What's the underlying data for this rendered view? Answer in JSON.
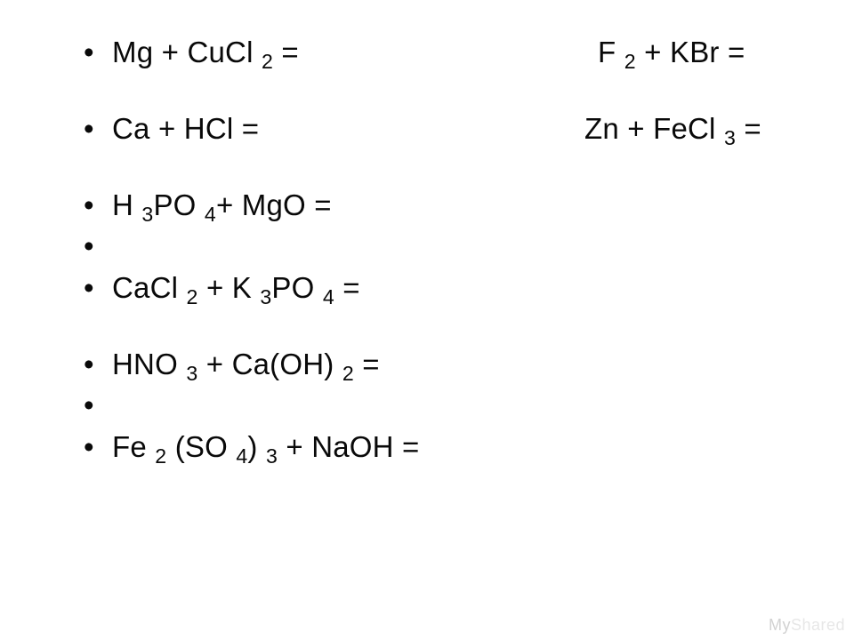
{
  "text_color": "#090909",
  "background_color": "#ffffff",
  "font_family": "Arial",
  "font_size_pt": 25,
  "lines": {
    "l0_left": "Mg + CuCl ₂ =",
    "l0_right": "F ₂ + KBr =",
    "l1_left": "Ca + HCl =",
    "l1_right": "Zn + FeCl ₃ =",
    "l2": "H ₃PO ₄+ MgO =",
    "l3": "CaCl ₂ + K ₃PO ₄ =",
    "l4": "HNO ₃ + Ca(OH) ₂ =",
    "l5": "Fe ₂ (SO ₄) ₃ + NaOH ="
  },
  "watermark": {
    "my": "My",
    "shared": "Shared"
  }
}
